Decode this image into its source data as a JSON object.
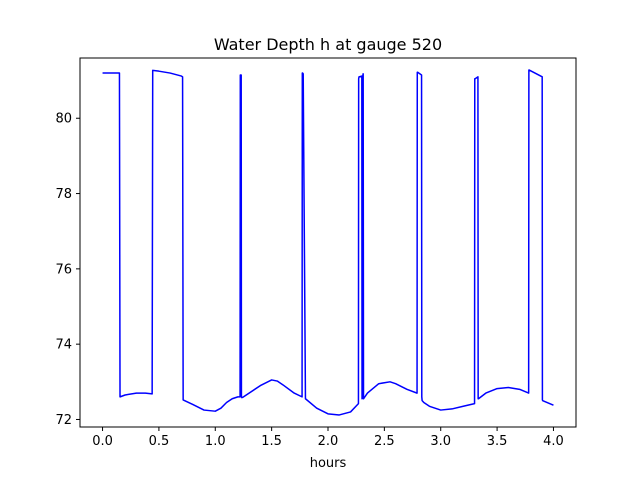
{
  "chart_data": {
    "type": "line",
    "title": "Water Depth h at gauge 520",
    "xlabel": "hours",
    "ylabel": "",
    "xlim": [
      -0.2,
      4.2
    ],
    "ylim": [
      71.8,
      81.6
    ],
    "xticks": [
      0.0,
      0.5,
      1.0,
      1.5,
      2.0,
      2.5,
      3.0,
      3.5,
      4.0
    ],
    "xtick_labels": [
      "0.0",
      "0.5",
      "1.0",
      "1.5",
      "2.0",
      "2.5",
      "3.0",
      "3.5",
      "4.0"
    ],
    "yticks": [
      72,
      74,
      76,
      78,
      80
    ],
    "ytick_labels": [
      "72",
      "74",
      "76",
      "78",
      "80"
    ],
    "grid": false,
    "series": [
      {
        "color": "#0000ff",
        "x": [
          0.0,
          0.15,
          0.155,
          0.2,
          0.3,
          0.38,
          0.44,
          0.445,
          0.5,
          0.6,
          0.7,
          0.71,
          0.715,
          0.8,
          0.9,
          1.0,
          1.05,
          1.1,
          1.15,
          1.2,
          1.22,
          1.222,
          1.225,
          1.23,
          1.232,
          1.235,
          1.25,
          1.3,
          1.4,
          1.5,
          1.55,
          1.6,
          1.7,
          1.77,
          1.772,
          1.775,
          1.78,
          1.8,
          1.9,
          2.0,
          2.1,
          2.2,
          2.27,
          2.272,
          2.275,
          2.3,
          2.302,
          2.305,
          2.31,
          2.312,
          2.315,
          2.35,
          2.45,
          2.55,
          2.6,
          2.7,
          2.79,
          2.792,
          2.795,
          2.83,
          2.832,
          2.835,
          2.85,
          2.9,
          3.0,
          3.1,
          3.2,
          3.3,
          3.302,
          3.305,
          3.33,
          3.332,
          3.335,
          3.4,
          3.5,
          3.6,
          3.7,
          3.78,
          3.782,
          3.785,
          3.9,
          3.902,
          3.905,
          4.0
        ],
        "y": [
          81.2,
          81.2,
          72.6,
          72.65,
          72.7,
          72.7,
          72.68,
          81.27,
          81.25,
          81.2,
          81.12,
          81.1,
          72.52,
          72.4,
          72.25,
          72.22,
          72.3,
          72.45,
          72.55,
          72.6,
          72.6,
          81.15,
          81.15,
          81.15,
          72.6,
          72.58,
          72.6,
          72.7,
          72.9,
          73.05,
          73.02,
          72.92,
          72.7,
          72.6,
          81.2,
          81.2,
          81.18,
          72.55,
          72.3,
          72.15,
          72.12,
          72.2,
          72.42,
          81.05,
          81.1,
          81.12,
          72.55,
          72.6,
          81.15,
          81.18,
          72.55,
          72.7,
          72.95,
          73.0,
          72.95,
          72.8,
          72.7,
          81.22,
          81.22,
          81.15,
          72.6,
          72.5,
          72.45,
          72.35,
          72.25,
          72.28,
          72.35,
          72.42,
          81.05,
          81.05,
          81.1,
          72.55,
          72.55,
          72.7,
          72.82,
          72.85,
          72.8,
          72.7,
          81.28,
          81.28,
          81.1,
          72.52,
          72.5,
          72.38
        ]
      }
    ]
  }
}
